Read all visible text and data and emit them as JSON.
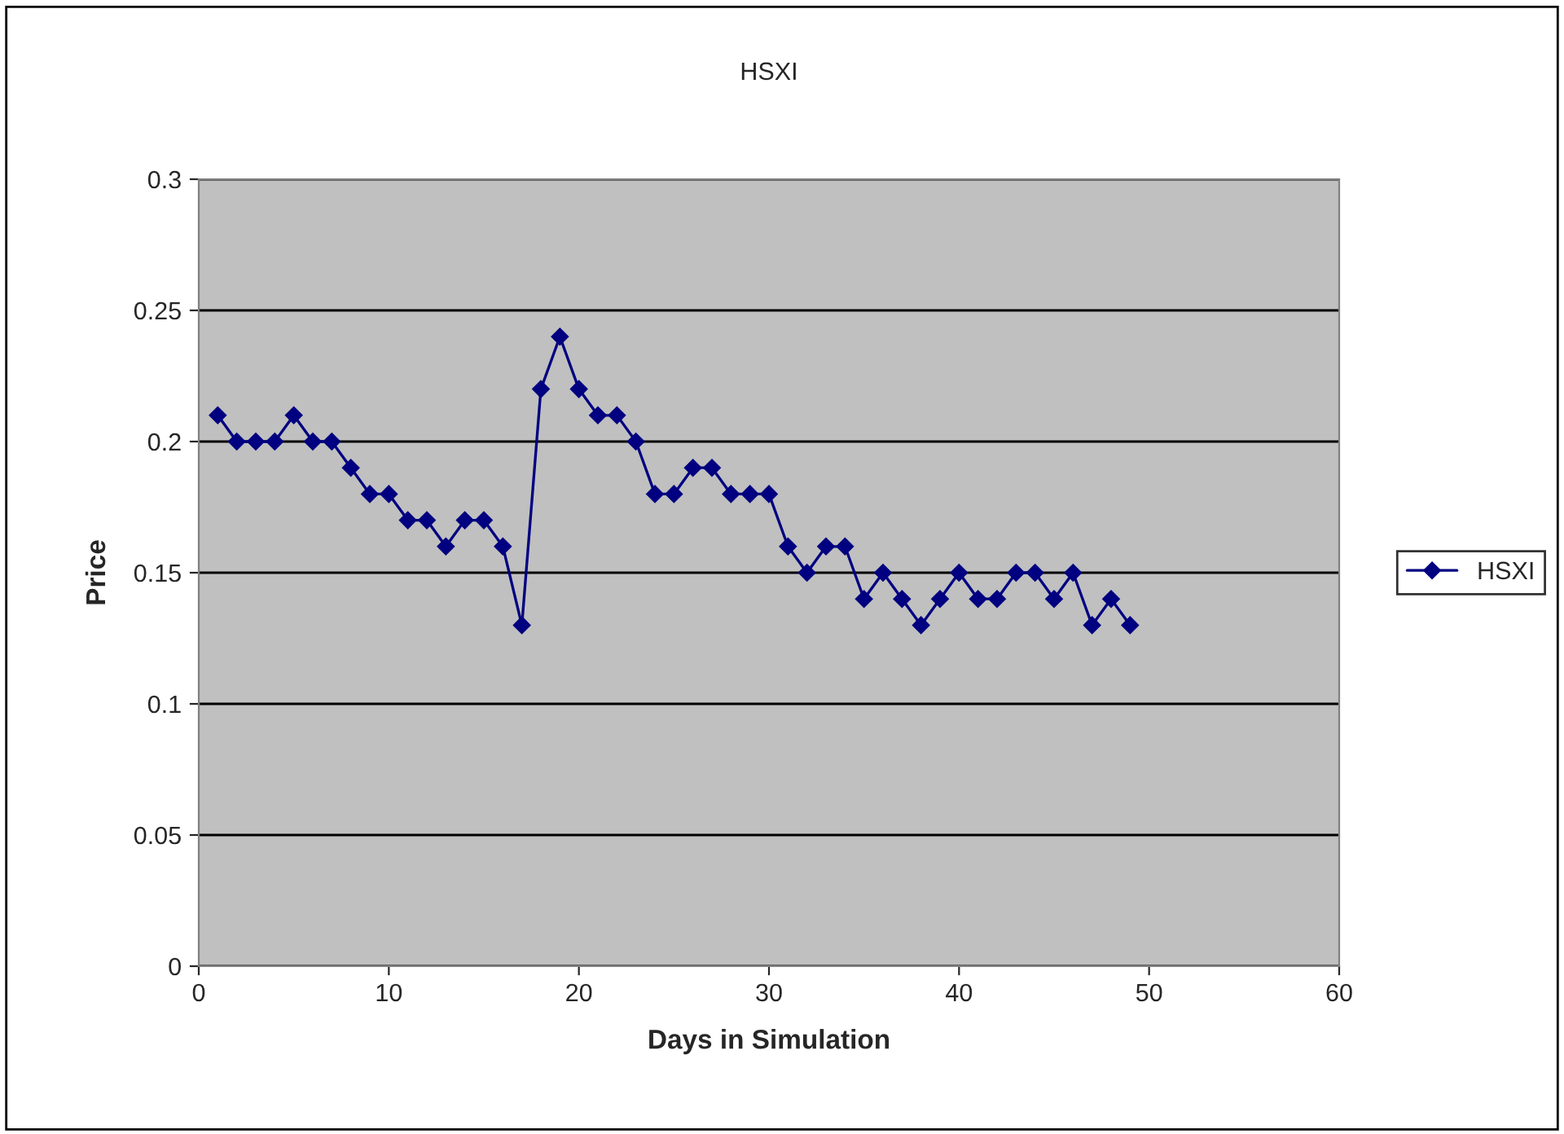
{
  "chart_data": {
    "type": "line",
    "title": "HSXI",
    "xlabel": "Days in Simulation",
    "ylabel": "Price",
    "x": [
      1,
      2,
      3,
      4,
      5,
      6,
      7,
      8,
      9,
      10,
      11,
      12,
      13,
      14,
      15,
      16,
      17,
      18,
      19,
      20,
      21,
      22,
      23,
      24,
      25,
      26,
      27,
      28,
      29,
      30,
      31,
      32,
      33,
      34,
      35,
      36,
      37,
      38,
      39,
      40,
      41,
      42,
      43,
      44,
      45,
      46,
      47,
      48,
      49
    ],
    "series": [
      {
        "name": "HSXI",
        "color": "#000080",
        "values": [
          0.21,
          0.2,
          0.2,
          0.2,
          0.21,
          0.2,
          0.2,
          0.19,
          0.18,
          0.18,
          0.17,
          0.17,
          0.16,
          0.17,
          0.17,
          0.16,
          0.13,
          0.22,
          0.24,
          0.22,
          0.21,
          0.21,
          0.2,
          0.18,
          0.18,
          0.19,
          0.19,
          0.18,
          0.18,
          0.18,
          0.16,
          0.15,
          0.16,
          0.16,
          0.14,
          0.15,
          0.14,
          0.13,
          0.14,
          0.15,
          0.14,
          0.14,
          0.15,
          0.15,
          0.14,
          0.15,
          0.13,
          0.14,
          0.13
        ]
      }
    ],
    "xlim": [
      0,
      60
    ],
    "xticks": [
      0,
      10,
      20,
      30,
      40,
      50,
      60
    ],
    "ylim": [
      0,
      0.3
    ],
    "yticks": [
      0,
      0.05,
      0.1,
      0.15,
      0.2,
      0.25,
      0.3
    ],
    "grid": "y",
    "legend": "right",
    "marker": "diamond",
    "line_style": "solid"
  }
}
